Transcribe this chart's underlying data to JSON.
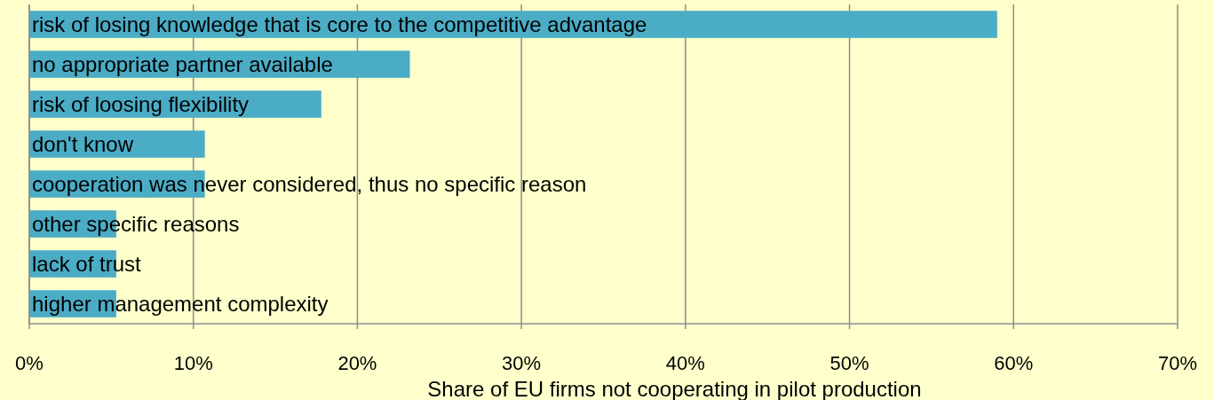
{
  "chart_data": {
    "type": "bar",
    "orientation": "horizontal",
    "categories": [
      "risk of losing knowledge that is core to the competitive advantage",
      "no appropriate partner available",
      "risk of loosing flexibility",
      "don't know",
      "cooperation was never considered, thus no specific reason",
      "other specific reasons",
      "lack of trust",
      "higher management complexity"
    ],
    "values": [
      59,
      23.2,
      17.8,
      10.7,
      10.7,
      5.3,
      5.3,
      5.3
    ],
    "color": "#4bacc6",
    "xlim": [
      0,
      70
    ],
    "xticks": [
      {
        "value": 0,
        "label": "0%"
      },
      {
        "value": 10,
        "label": "10%"
      },
      {
        "value": 20,
        "label": "20%"
      },
      {
        "value": 30,
        "label": "30%"
      },
      {
        "value": 40,
        "label": "40%"
      },
      {
        "value": 50,
        "label": "50%"
      },
      {
        "value": 60,
        "label": "60%"
      },
      {
        "value": 70,
        "label": "70%"
      }
    ],
    "xlabel": "Share of  EU firms not cooperating in pilot production",
    "grid": "x"
  }
}
